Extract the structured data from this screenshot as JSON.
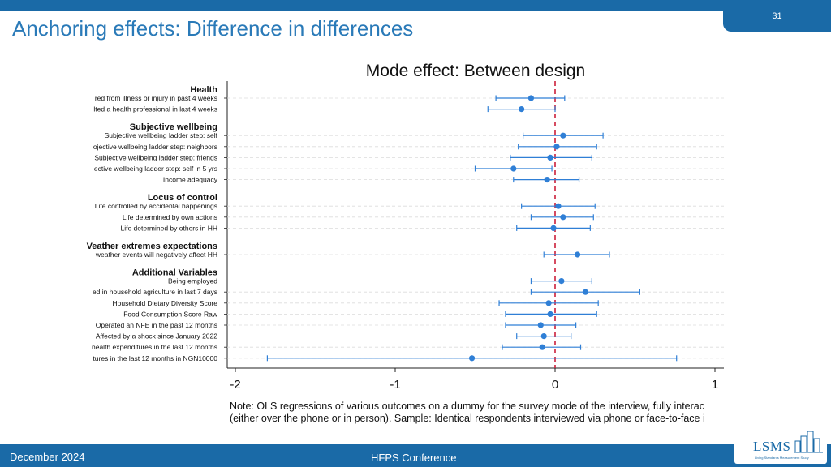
{
  "slide": {
    "page_number": "31",
    "title": "Anchoring effects: Difference in differences"
  },
  "footer": {
    "date": "December 2024",
    "conference": "HFPS Conference",
    "logo_text": "LSMS",
    "logo_subtitle": "Living Standards Measurement Study"
  },
  "colors": {
    "brand_blue": "#1a6aa7",
    "title_blue": "#2a7ab8",
    "marker_blue": "#2f7fd6",
    "zero_line_red": "#cc1f3a"
  },
  "chart_data": {
    "type": "coefficient_plot",
    "title": "Mode effect: Between design",
    "x_ticks": [
      -2,
      -1,
      0,
      1
    ],
    "xlim": [
      -2.05,
      1.05
    ],
    "reference_line": 0,
    "groups": [
      {
        "name": "Health",
        "items": [
          {
            "label": "red from illness or injury in past 4 weeks",
            "est": -0.15,
            "lo": -0.37,
            "hi": 0.06
          },
          {
            "label": "lted a health professional in last 4 weeks",
            "est": -0.21,
            "lo": -0.42,
            "hi": 0.0
          }
        ]
      },
      {
        "name": "Subjective wellbeing",
        "items": [
          {
            "label": "Subjective wellbeing ladder step: self",
            "est": 0.05,
            "lo": -0.2,
            "hi": 0.3
          },
          {
            "label": "ojective wellbeing ladder step: neighbors",
            "est": 0.01,
            "lo": -0.23,
            "hi": 0.26
          },
          {
            "label": "Subjective wellbeing ladder step: friends",
            "est": -0.03,
            "lo": -0.28,
            "hi": 0.23
          },
          {
            "label": "ective wellbeing ladder step: self in 5 yrs",
            "est": -0.26,
            "lo": -0.5,
            "hi": -0.02
          },
          {
            "label": "Income adequacy",
            "est": -0.05,
            "lo": -0.26,
            "hi": 0.15
          }
        ]
      },
      {
        "name": "Locus of control",
        "items": [
          {
            "label": "Life controlled by accidental happenings",
            "est": 0.02,
            "lo": -0.21,
            "hi": 0.25
          },
          {
            "label": "Life determined by own actions",
            "est": 0.05,
            "lo": -0.15,
            "hi": 0.24
          },
          {
            "label": "Life determined by others in HH",
            "est": -0.01,
            "lo": -0.24,
            "hi": 0.22
          }
        ]
      },
      {
        "name": "Veather extremes expectations",
        "items": [
          {
            "label": "weather events will negatively affect HH",
            "est": 0.14,
            "lo": -0.07,
            "hi": 0.34
          }
        ]
      },
      {
        "name": "Additional Variables",
        "items": [
          {
            "label": "Being employed",
            "est": 0.04,
            "lo": -0.15,
            "hi": 0.23
          },
          {
            "label": "ed in household agriculture in last 7 days",
            "est": 0.19,
            "lo": -0.15,
            "hi": 0.53
          },
          {
            "label": "Household Dietary Diversity Score",
            "est": -0.04,
            "lo": -0.35,
            "hi": 0.27
          },
          {
            "label": "Food Consumption Score Raw",
            "est": -0.03,
            "lo": -0.31,
            "hi": 0.26
          },
          {
            "label": "Operated an NFE in the past 12 months",
            "est": -0.09,
            "lo": -0.31,
            "hi": 0.13
          },
          {
            "label": "Affected by a shock since January 2022",
            "est": -0.07,
            "lo": -0.24,
            "hi": 0.1
          },
          {
            "label": "nealth expenditures in the last 12 months",
            "est": -0.08,
            "lo": -0.33,
            "hi": 0.16
          },
          {
            "label": "tures in the last 12 months in NGN10000",
            "est": -0.52,
            "lo": -1.8,
            "hi": 0.76
          }
        ]
      }
    ],
    "note_lines": [
      "Note: OLS regressions of various outcomes on a dummy for the survey mode of the interview, fully interac",
      "(either over the phone or in person). Sample: Identical respondents interviewed via phone or face-to-face i"
    ]
  }
}
